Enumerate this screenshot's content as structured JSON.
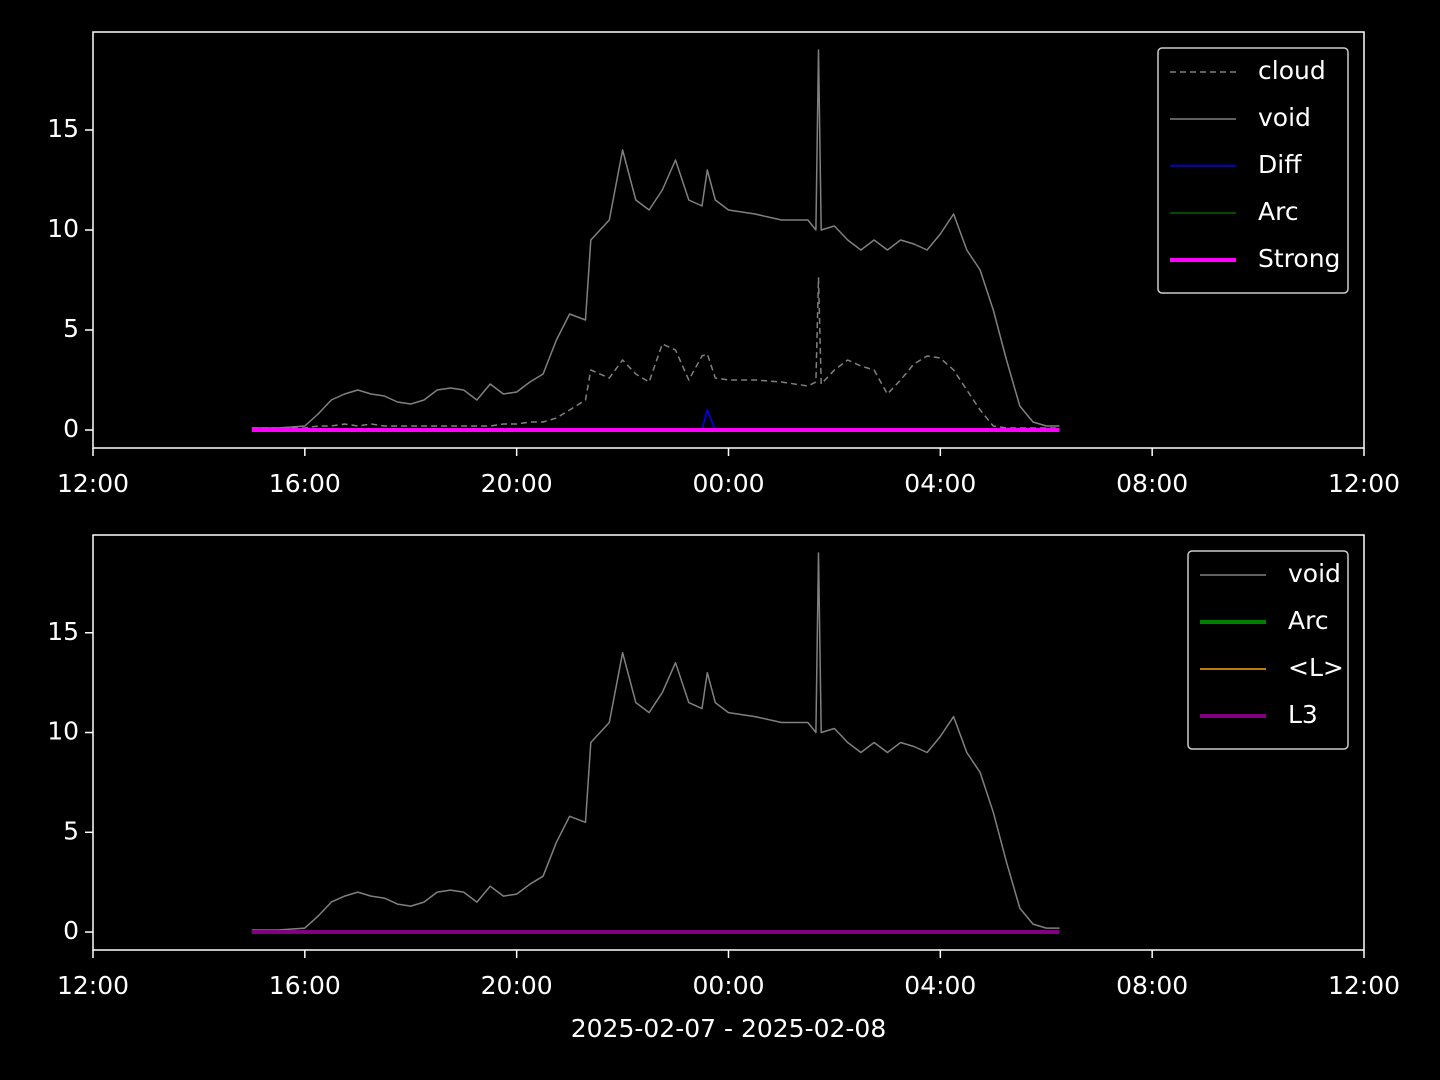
{
  "chart_data": [
    {
      "type": "line",
      "legend": "upper right",
      "x": [
        15,
        15.5,
        16,
        16.25,
        16.5,
        16.75,
        17,
        17.25,
        17.5,
        17.75,
        18,
        18.25,
        18.5,
        18.75,
        19,
        19.25,
        19.5,
        19.75,
        20,
        20.25,
        20.5,
        20.75,
        21,
        21.3,
        21.4,
        21.75,
        22,
        22.25,
        22.5,
        22.75,
        23,
        23.25,
        23.5,
        23.6,
        23.75,
        24,
        24.5,
        25,
        25.5,
        25.65,
        25.7,
        25.75,
        26,
        26.25,
        26.5,
        26.75,
        27,
        27.25,
        27.5,
        27.75,
        28,
        28.25,
        28.5,
        28.75,
        29,
        29.25,
        29.5,
        29.75,
        30,
        30.25
      ],
      "xlim": [
        12,
        36
      ],
      "xticks": [
        {
          "value": 12,
          "label": "12:00"
        },
        {
          "value": 16,
          "label": "16:00"
        },
        {
          "value": 20,
          "label": "20:00"
        },
        {
          "value": 24,
          "label": "00:00"
        },
        {
          "value": 28,
          "label": "04:00"
        },
        {
          "value": 32,
          "label": "08:00"
        },
        {
          "value": 36,
          "label": "12:00"
        }
      ],
      "ylim": [
        -0.9,
        19.9
      ],
      "yticks": [
        0,
        5,
        10,
        15
      ],
      "series": [
        {
          "name": "cloud",
          "color": "#808080",
          "linestyle": "dashed",
          "linewidth": 1.5,
          "values": [
            0.1,
            0.1,
            0.1,
            0.2,
            0.2,
            0.3,
            0.2,
            0.3,
            0.2,
            0.2,
            0.2,
            0.2,
            0.2,
            0.2,
            0.2,
            0.2,
            0.2,
            0.3,
            0.3,
            0.4,
            0.4,
            0.6,
            1.0,
            1.5,
            3.0,
            2.6,
            3.5,
            2.8,
            2.4,
            4.3,
            4.0,
            2.5,
            3.7,
            3.8,
            2.6,
            2.5,
            2.5,
            2.4,
            2.2,
            2.4,
            7.6,
            2.3,
            3.0,
            3.5,
            3.2,
            3.0,
            1.8,
            2.5,
            3.3,
            3.7,
            3.6,
            3.0,
            2.0,
            1.0,
            0.2,
            0.1,
            0.1,
            0.1,
            0.1,
            0.1
          ]
        },
        {
          "name": "void",
          "color": "#808080",
          "linestyle": "solid",
          "linewidth": 1.5,
          "values": [
            0.1,
            0.1,
            0.2,
            0.8,
            1.5,
            1.8,
            2.0,
            1.8,
            1.7,
            1.4,
            1.3,
            1.5,
            2.0,
            2.1,
            2.0,
            1.5,
            2.3,
            1.8,
            1.9,
            2.4,
            2.8,
            4.5,
            5.8,
            5.5,
            9.5,
            10.5,
            14.0,
            11.5,
            11.0,
            12.0,
            13.5,
            11.5,
            11.2,
            13.0,
            11.5,
            11.0,
            10.8,
            10.5,
            10.5,
            10.0,
            19.0,
            10.0,
            10.2,
            9.5,
            9.0,
            9.5,
            9.0,
            9.5,
            9.3,
            9.0,
            9.8,
            10.8,
            9.0,
            8.0,
            6.0,
            3.5,
            1.2,
            0.4,
            0.2,
            0.2
          ]
        },
        {
          "name": "Diff",
          "color": "#0000ff",
          "linestyle": "solid",
          "linewidth": 1.5,
          "values": [
            0,
            0,
            0,
            0,
            0,
            0,
            0,
            0,
            0,
            0,
            0,
            0,
            0,
            0,
            0,
            0,
            0,
            0,
            0,
            0,
            0,
            0,
            0,
            0,
            0,
            0,
            0,
            0,
            0,
            0,
            0,
            0,
            0,
            1.0,
            0,
            0,
            0,
            0,
            0,
            0,
            0,
            0,
            0,
            0,
            0,
            0,
            0,
            0,
            0,
            0,
            0,
            0,
            0,
            0,
            0,
            0,
            0,
            0,
            0,
            0
          ]
        },
        {
          "name": "Arc",
          "color": "#006400",
          "linestyle": "solid",
          "linewidth": 1.5,
          "values": [
            0,
            0,
            0,
            0,
            0,
            0,
            0,
            0,
            0,
            0,
            0,
            0,
            0,
            0,
            0,
            0,
            0,
            0,
            0,
            0,
            0,
            0,
            0,
            0,
            0,
            0,
            0,
            0,
            0,
            0,
            0,
            0,
            0,
            0,
            0,
            0,
            0,
            0,
            0,
            0,
            0,
            0,
            0,
            0,
            0,
            0,
            0,
            0,
            0,
            0,
            0,
            0,
            0,
            0,
            0,
            0,
            0,
            0,
            0,
            0
          ]
        },
        {
          "name": "Strong",
          "color": "#ff00ff",
          "linestyle": "solid",
          "linewidth": 4,
          "values": [
            0,
            0,
            0,
            0,
            0,
            0,
            0,
            0,
            0,
            0,
            0,
            0,
            0,
            0,
            0,
            0,
            0,
            0,
            0,
            0,
            0,
            0,
            0,
            0,
            0,
            0,
            0,
            0,
            0,
            0,
            0,
            0,
            0,
            0,
            0,
            0,
            0,
            0,
            0,
            0,
            0,
            0,
            0,
            0,
            0,
            0,
            0,
            0,
            0,
            0,
            0,
            0,
            0,
            0,
            0,
            0,
            0,
            0,
            0,
            0
          ]
        }
      ]
    },
    {
      "type": "line",
      "legend": "upper right",
      "xlabel": "2025-02-07 - 2025-02-08",
      "x": [
        15,
        15.5,
        16,
        16.25,
        16.5,
        16.75,
        17,
        17.25,
        17.5,
        17.75,
        18,
        18.25,
        18.5,
        18.75,
        19,
        19.25,
        19.5,
        19.75,
        20,
        20.25,
        20.5,
        20.75,
        21,
        21.3,
        21.4,
        21.75,
        22,
        22.25,
        22.5,
        22.75,
        23,
        23.25,
        23.5,
        23.6,
        23.75,
        24,
        24.5,
        25,
        25.5,
        25.65,
        25.7,
        25.75,
        26,
        26.25,
        26.5,
        26.75,
        27,
        27.25,
        27.5,
        27.75,
        28,
        28.25,
        28.5,
        28.75,
        29,
        29.25,
        29.5,
        29.75,
        30,
        30.25
      ],
      "xlim": [
        12,
        36
      ],
      "xticks": [
        {
          "value": 12,
          "label": "12:00"
        },
        {
          "value": 16,
          "label": "16:00"
        },
        {
          "value": 20,
          "label": "20:00"
        },
        {
          "value": 24,
          "label": "00:00"
        },
        {
          "value": 28,
          "label": "04:00"
        },
        {
          "value": 32,
          "label": "08:00"
        },
        {
          "value": 36,
          "label": "12:00"
        }
      ],
      "ylim": [
        -0.9,
        19.9
      ],
      "yticks": [
        0,
        5,
        10,
        15
      ],
      "series": [
        {
          "name": "void",
          "color": "#808080",
          "linestyle": "solid",
          "linewidth": 1.5,
          "values": [
            0.1,
            0.1,
            0.2,
            0.8,
            1.5,
            1.8,
            2.0,
            1.8,
            1.7,
            1.4,
            1.3,
            1.5,
            2.0,
            2.1,
            2.0,
            1.5,
            2.3,
            1.8,
            1.9,
            2.4,
            2.8,
            4.5,
            5.8,
            5.5,
            9.5,
            10.5,
            14.0,
            11.5,
            11.0,
            12.0,
            13.5,
            11.5,
            11.2,
            13.0,
            11.5,
            11.0,
            10.8,
            10.5,
            10.5,
            10.0,
            19.0,
            10.0,
            10.2,
            9.5,
            9.0,
            9.5,
            9.0,
            9.5,
            9.3,
            9.0,
            9.8,
            10.8,
            9.0,
            8.0,
            6.0,
            3.5,
            1.2,
            0.4,
            0.2,
            0.2
          ]
        },
        {
          "name": "Arc",
          "color": "#008000",
          "linestyle": "solid",
          "linewidth": 4,
          "values": [
            0,
            0,
            0,
            0,
            0,
            0,
            0,
            0,
            0,
            0,
            0,
            0,
            0,
            0,
            0,
            0,
            0,
            0,
            0,
            0,
            0,
            0,
            0,
            0,
            0,
            0,
            0,
            0,
            0,
            0,
            0,
            0,
            0,
            0,
            0,
            0,
            0,
            0,
            0,
            0,
            0,
            0,
            0,
            0,
            0,
            0,
            0,
            0,
            0,
            0,
            0,
            0,
            0,
            0,
            0,
            0,
            0,
            0,
            0,
            0
          ]
        },
        {
          "name": "<L>",
          "color": "#ffa500",
          "linestyle": "solid",
          "linewidth": 1.5,
          "values": [
            0,
            0,
            0,
            0,
            0,
            0,
            0,
            0,
            0,
            0,
            0,
            0,
            0,
            0,
            0,
            0,
            0,
            0,
            0,
            0,
            0,
            0,
            0,
            0,
            0,
            0,
            0,
            0,
            0,
            0,
            0,
            0,
            0,
            0,
            0,
            0,
            0,
            0,
            0,
            0,
            0,
            0,
            0,
            0,
            0,
            0,
            0,
            0,
            0,
            0,
            0,
            0,
            0,
            0,
            0,
            0,
            0,
            0,
            0,
            0
          ]
        },
        {
          "name": "L3",
          "color": "#800080",
          "linestyle": "solid",
          "linewidth": 4,
          "values": [
            0,
            0,
            0,
            0,
            0,
            0,
            0,
            0,
            0,
            0,
            0,
            0,
            0,
            0,
            0,
            0,
            0,
            0,
            0,
            0,
            0,
            0,
            0,
            0,
            0,
            0,
            0,
            0,
            0,
            0,
            0,
            0,
            0,
            0,
            0,
            0,
            0,
            0,
            0,
            0,
            0,
            0,
            0,
            0,
            0,
            0,
            0,
            0,
            0,
            0,
            0,
            0,
            0,
            0,
            0,
            0,
            0,
            0,
            0,
            0
          ]
        }
      ]
    }
  ]
}
